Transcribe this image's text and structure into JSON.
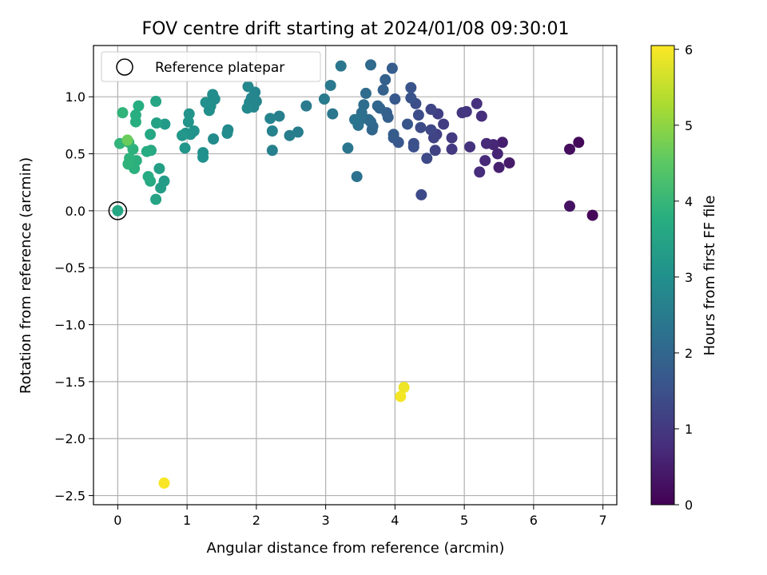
{
  "chart_data": {
    "type": "scatter",
    "title": "FOV centre drift starting at 2024/01/08 09:30:01",
    "xlabel": "Angular distance from reference (arcmin)",
    "ylabel": "Rotation from reference (arcmin)",
    "xlim": [
      -0.35,
      7.2
    ],
    "ylim": [
      -2.58,
      1.45
    ],
    "x_ticks": [
      0,
      1,
      2,
      3,
      4,
      5,
      6,
      7
    ],
    "x_tick_labels": [
      "0",
      "1",
      "2",
      "3",
      "4",
      "5",
      "6",
      "7"
    ],
    "y_ticks": [
      1.0,
      0.5,
      0.0,
      -0.5,
      -1.0,
      -1.5,
      -2.0,
      -2.5
    ],
    "y_tick_labels": [
      "1.0",
      "0.5",
      "0.0",
      "−0.5",
      "−1.0",
      "−1.5",
      "−2.0",
      "−2.5"
    ],
    "grid": true,
    "legend": {
      "label": "Reference platepar",
      "placement": "top-left"
    },
    "colorbar": {
      "label": "Hours from first FF file",
      "colormap": "viridis",
      "range": [
        0,
        6.05
      ],
      "ticks": [
        0,
        1,
        2,
        3,
        4,
        5,
        6
      ],
      "tick_labels": [
        "0",
        "1",
        "2",
        "3",
        "4",
        "5",
        "6"
      ]
    },
    "reference_point": {
      "x": 0.0,
      "y": 0.0
    },
    "points": [
      {
        "x": 6.85,
        "y": -0.04,
        "c": 0.05
      },
      {
        "x": 6.65,
        "y": 0.6,
        "c": 0.12
      },
      {
        "x": 6.52,
        "y": 0.54,
        "c": 0.2
      },
      {
        "x": 6.52,
        "y": 0.04,
        "c": 0.27
      },
      {
        "x": 5.65,
        "y": 0.42,
        "c": 0.45
      },
      {
        "x": 5.55,
        "y": 0.6,
        "c": 0.5
      },
      {
        "x": 5.5,
        "y": 0.38,
        "c": 0.55
      },
      {
        "x": 5.48,
        "y": 0.5,
        "c": 0.6
      },
      {
        "x": 5.42,
        "y": 0.58,
        "c": 0.65
      },
      {
        "x": 5.32,
        "y": 0.59,
        "c": 0.7
      },
      {
        "x": 5.3,
        "y": 0.44,
        "c": 0.72
      },
      {
        "x": 5.22,
        "y": 0.34,
        "c": 0.76
      },
      {
        "x": 5.25,
        "y": 0.83,
        "c": 0.8
      },
      {
        "x": 5.18,
        "y": 0.94,
        "c": 0.84
      },
      {
        "x": 5.08,
        "y": 0.56,
        "c": 0.88
      },
      {
        "x": 5.03,
        "y": 0.87,
        "c": 0.92
      },
      {
        "x": 4.97,
        "y": 0.86,
        "c": 0.96
      },
      {
        "x": 4.82,
        "y": 0.54,
        "c": 1.0
      },
      {
        "x": 4.82,
        "y": 0.64,
        "c": 1.04
      },
      {
        "x": 4.7,
        "y": 0.76,
        "c": 1.08
      },
      {
        "x": 4.62,
        "y": 0.85,
        "c": 1.12
      },
      {
        "x": 4.6,
        "y": 0.67,
        "c": 1.15
      },
      {
        "x": 4.58,
        "y": 0.53,
        "c": 1.18
      },
      {
        "x": 4.56,
        "y": 0.64,
        "c": 1.22
      },
      {
        "x": 4.52,
        "y": 0.89,
        "c": 1.25
      },
      {
        "x": 4.52,
        "y": 0.71,
        "c": 1.28
      },
      {
        "x": 4.46,
        "y": 0.46,
        "c": 1.32
      },
      {
        "x": 4.38,
        "y": 0.14,
        "c": 1.35
      },
      {
        "x": 4.37,
        "y": 0.73,
        "c": 1.38
      },
      {
        "x": 4.34,
        "y": 0.84,
        "c": 1.41
      },
      {
        "x": 4.3,
        "y": 0.94,
        "c": 1.44
      },
      {
        "x": 4.27,
        "y": 0.59,
        "c": 1.47
      },
      {
        "x": 4.27,
        "y": 0.56,
        "c": 1.5
      },
      {
        "x": 4.23,
        "y": 0.99,
        "c": 1.53
      },
      {
        "x": 4.23,
        "y": 1.08,
        "c": 1.56
      },
      {
        "x": 4.18,
        "y": 0.76,
        "c": 1.6
      },
      {
        "x": 4.05,
        "y": 0.6,
        "c": 1.64
      },
      {
        "x": 4.0,
        "y": 0.98,
        "c": 1.68
      },
      {
        "x": 3.98,
        "y": 0.64,
        "c": 1.71
      },
      {
        "x": 3.98,
        "y": 0.67,
        "c": 1.74
      },
      {
        "x": 3.96,
        "y": 1.25,
        "c": 1.77
      },
      {
        "x": 3.9,
        "y": 0.82,
        "c": 1.8
      },
      {
        "x": 3.88,
        "y": 0.86,
        "c": 1.83
      },
      {
        "x": 3.86,
        "y": 1.15,
        "c": 1.86
      },
      {
        "x": 3.83,
        "y": 1.06,
        "c": 1.89
      },
      {
        "x": 3.78,
        "y": 0.9,
        "c": 1.92
      },
      {
        "x": 3.75,
        "y": 0.92,
        "c": 1.95
      },
      {
        "x": 3.67,
        "y": 0.71,
        "c": 1.98
      },
      {
        "x": 3.68,
        "y": 0.74,
        "c": 2.01
      },
      {
        "x": 3.65,
        "y": 0.78,
        "c": 2.04
      },
      {
        "x": 3.65,
        "y": 1.28,
        "c": 2.07
      },
      {
        "x": 3.62,
        "y": 0.8,
        "c": 2.1
      },
      {
        "x": 3.58,
        "y": 1.03,
        "c": 2.13
      },
      {
        "x": 3.55,
        "y": 0.93,
        "c": 2.16
      },
      {
        "x": 3.52,
        "y": 0.86,
        "c": 2.19
      },
      {
        "x": 3.5,
        "y": 0.8,
        "c": 2.22
      },
      {
        "x": 3.47,
        "y": 0.75,
        "c": 2.25
      },
      {
        "x": 3.45,
        "y": 0.3,
        "c": 2.28
      },
      {
        "x": 3.42,
        "y": 0.8,
        "c": 2.31
      },
      {
        "x": 3.32,
        "y": 0.55,
        "c": 2.34
      },
      {
        "x": 3.22,
        "y": 1.27,
        "c": 2.37
      },
      {
        "x": 3.1,
        "y": 0.85,
        "c": 2.4
      },
      {
        "x": 3.07,
        "y": 1.1,
        "c": 2.43
      },
      {
        "x": 2.98,
        "y": 0.98,
        "c": 2.46
      },
      {
        "x": 2.72,
        "y": 0.92,
        "c": 2.5
      },
      {
        "x": 2.6,
        "y": 0.69,
        "c": 2.53
      },
      {
        "x": 2.48,
        "y": 0.66,
        "c": 2.56
      },
      {
        "x": 2.33,
        "y": 0.83,
        "c": 2.59
      },
      {
        "x": 2.23,
        "y": 0.53,
        "c": 2.62
      },
      {
        "x": 2.23,
        "y": 0.7,
        "c": 2.65
      },
      {
        "x": 2.2,
        "y": 0.81,
        "c": 2.68
      },
      {
        "x": 2.0,
        "y": 0.96,
        "c": 2.71
      },
      {
        "x": 1.98,
        "y": 1.04,
        "c": 2.73
      },
      {
        "x": 1.96,
        "y": 0.91,
        "c": 2.75
      },
      {
        "x": 1.93,
        "y": 0.99,
        "c": 2.77
      },
      {
        "x": 1.9,
        "y": 0.95,
        "c": 2.79
      },
      {
        "x": 1.88,
        "y": 1.09,
        "c": 2.81
      },
      {
        "x": 1.87,
        "y": 0.9,
        "c": 2.83
      },
      {
        "x": 1.59,
        "y": 0.71,
        "c": 2.85
      },
      {
        "x": 1.58,
        "y": 0.68,
        "c": 2.87
      },
      {
        "x": 1.38,
        "y": 0.63,
        "c": 2.89
      },
      {
        "x": 1.4,
        "y": 0.98,
        "c": 2.91
      },
      {
        "x": 1.37,
        "y": 1.02,
        "c": 2.93
      },
      {
        "x": 1.34,
        "y": 0.92,
        "c": 2.95
      },
      {
        "x": 1.32,
        "y": 0.88,
        "c": 2.97
      },
      {
        "x": 1.27,
        "y": 0.95,
        "c": 2.99
      },
      {
        "x": 1.23,
        "y": 0.51,
        "c": 3.01
      },
      {
        "x": 1.23,
        "y": 0.47,
        "c": 3.03
      },
      {
        "x": 1.1,
        "y": 0.7,
        "c": 3.05
      },
      {
        "x": 1.05,
        "y": 0.67,
        "c": 3.08
      },
      {
        "x": 1.03,
        "y": 0.85,
        "c": 3.1
      },
      {
        "x": 1.02,
        "y": 0.78,
        "c": 3.12
      },
      {
        "x": 0.98,
        "y": 0.68,
        "c": 3.14
      },
      {
        "x": 0.97,
        "y": 0.55,
        "c": 3.16
      },
      {
        "x": 0.93,
        "y": 0.66,
        "c": 3.18
      },
      {
        "x": 0.68,
        "y": 0.76,
        "c": 3.25
      },
      {
        "x": 0.67,
        "y": 0.26,
        "c": 3.3
      },
      {
        "x": 0.62,
        "y": 0.2,
        "c": 3.35
      },
      {
        "x": 0.6,
        "y": 0.37,
        "c": 3.4
      },
      {
        "x": 0.56,
        "y": 0.77,
        "c": 3.45
      },
      {
        "x": 0.55,
        "y": 0.1,
        "c": 3.5
      },
      {
        "x": 0.55,
        "y": 0.96,
        "c": 3.55
      },
      {
        "x": 0.47,
        "y": 0.67,
        "c": 3.6
      },
      {
        "x": 0.48,
        "y": 0.53,
        "c": 3.63
      },
      {
        "x": 0.47,
        "y": 0.26,
        "c": 3.66
      },
      {
        "x": 0.44,
        "y": 0.3,
        "c": 3.69
      },
      {
        "x": 0.42,
        "y": 0.52,
        "c": 3.72
      },
      {
        "x": 0.3,
        "y": 0.92,
        "c": 3.75
      },
      {
        "x": 0.26,
        "y": 0.84,
        "c": 3.78
      },
      {
        "x": 0.26,
        "y": 0.78,
        "c": 3.8
      },
      {
        "x": 0.27,
        "y": 0.44,
        "c": 3.82
      },
      {
        "x": 0.24,
        "y": 0.37,
        "c": 3.84
      },
      {
        "x": 0.22,
        "y": 0.54,
        "c": 3.86
      },
      {
        "x": 0.17,
        "y": 0.46,
        "c": 3.88
      },
      {
        "x": 0.15,
        "y": 0.41,
        "c": 3.9
      },
      {
        "x": 0.07,
        "y": 0.86,
        "c": 3.92
      },
      {
        "x": 0.03,
        "y": 0.59,
        "c": 3.94
      },
      {
        "x": 0.16,
        "y": 0.6,
        "c": 3.96
      },
      {
        "x": 0.0,
        "y": 0.0,
        "c": 3.6
      },
      {
        "x": 0.14,
        "y": 0.62,
        "c": 4.65
      },
      {
        "x": 4.13,
        "y": -1.55,
        "c": 5.9
      },
      {
        "x": 4.08,
        "y": -1.63,
        "c": 5.95
      },
      {
        "x": 0.67,
        "y": -2.39,
        "c": 6.0
      }
    ]
  }
}
